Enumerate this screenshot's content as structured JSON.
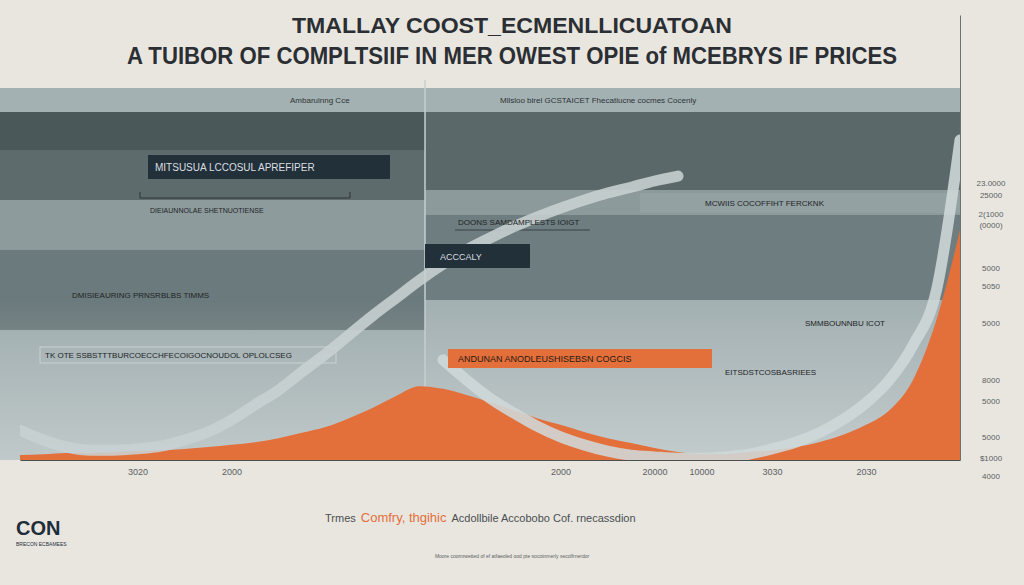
{
  "chart_data": {
    "type": "area",
    "title": "TMALLAY COOST_ECMENLLICUATOAN",
    "subtitle": "A TUIBOR OF COMPLTSIIF IN MER OWEST OPIE of MCEBRYS IF PRICES",
    "categories": [
      null,
      null,
      null,
      null,
      null,
      "3020",
      null,
      null,
      null,
      "2000",
      null,
      null,
      null,
      null,
      null,
      null,
      null,
      null,
      null,
      null,
      null,
      null,
      null,
      "2000",
      null,
      null,
      null,
      "20000",
      null,
      "10000",
      null,
      null,
      "3030",
      null,
      null,
      null,
      "2030",
      null,
      null,
      null,
      null
    ],
    "series": [
      {
        "type": "area",
        "color": "#e36f3a",
        "values": [
          1.1,
          1.3,
          1.6,
          1.6,
          1.8,
          2.0,
          2.2,
          2.5,
          2.9,
          3.4,
          4.0,
          4.9,
          6.1,
          7.4,
          9.4,
          11.7,
          14.4,
          16.6,
          16.0,
          14.6,
          13.0,
          11.2,
          9.4,
          7.9,
          6.3,
          4.9,
          3.8,
          2.7,
          1.8,
          1.3,
          1.3,
          1.8,
          2.2,
          2.9,
          4.0,
          5.6,
          7.9,
          11.2,
          18.0,
          31.5,
          51.7
        ]
      },
      {
        "type": "line",
        "color": "#c8d2d3",
        "values": [
          6.7,
          4.5,
          2.9,
          2.2,
          2.2,
          2.5,
          3.1,
          4.5,
          6.3,
          9.0,
          12.4,
          15.7,
          19.8,
          23.8,
          28.1,
          32.4,
          36.4,
          40.4,
          44.0,
          47.2,
          49.9,
          52.4,
          54.6,
          56.6,
          58.4,
          60.0,
          61.3,
          62.7,
          63.8,
          null,
          null,
          null,
          null,
          null,
          null,
          null,
          null,
          null,
          null,
          null,
          null
        ]
      },
      {
        "type": "line",
        "color": "#cfd8d9",
        "values": [
          null,
          null,
          null,
          null,
          null,
          null,
          null,
          null,
          null,
          null,
          null,
          null,
          null,
          null,
          null,
          null,
          null,
          null,
          22.5,
          18.0,
          13.9,
          10.6,
          7.6,
          5.2,
          3.4,
          2.0,
          1.1,
          0.7,
          0.4,
          0.4,
          0.7,
          1.3,
          2.5,
          4.0,
          6.1,
          9.0,
          12.8,
          18.0,
          25.8,
          38.2,
          71.9
        ]
      }
    ],
    "ylim": [
      0,
      100
    ],
    "grid": false,
    "tick_labels": "x",
    "annotations": [
      "Ambaruinng Cce",
      "Mllsloo birel GCSTAICET Fhecatiucne cocmes Cocenly",
      "MITSUSUA LCCOSUL APREFIPER",
      "DIEIAUNNOLAE SHETNUOTIENSE",
      "DMISIEAURING PRNSRBLBS TIMMS",
      "TK OTE SSBSTTTBURCOECCHFECOIGOCNOUDOL OPLOLCSEG",
      "DOONS SAMDAMPLESTS IOIGT",
      "ACCCALY",
      "MCWIIS COCOFFIHT FERCKNK",
      "ANDUNAN ANODLEUSHISEBSN COGCIS",
      "SMMBOUNNBU ICOT",
      "EITSDSTCOSBASRIEES",
      "23.0000",
      "25000",
      "2(1000",
      "(0000)",
      "5000",
      "5050",
      "5000",
      "8000",
      "5000",
      "5000",
      "$1000",
      "4000",
      "Trmes",
      "Comfry, thgihic",
      "Acdollbile Accobobo Cof. rnecassdion",
      "CON",
      "BRECON ECBAMEES",
      "Moore coomrwetted of ef atfaeoled ood pte socotnmerly secolfrnerdor"
    ]
  }
}
